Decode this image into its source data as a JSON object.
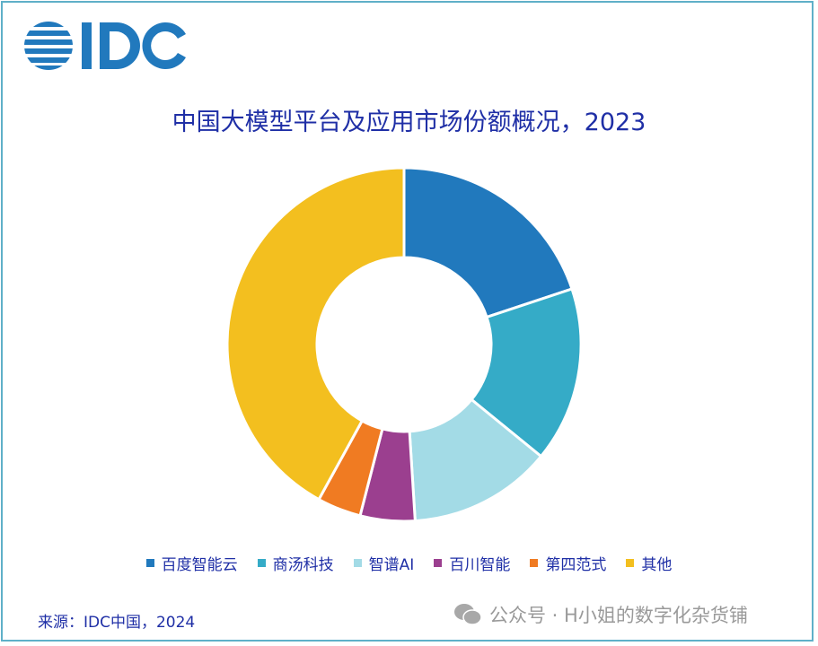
{
  "logo_text": "IDC",
  "chart_data": {
    "type": "pie",
    "variant": "donut",
    "title": "中国大模型平台及应用市场份额概况，2023",
    "categories": [
      "百度智能云",
      "商汤科技",
      "智谱AI",
      "百川智能",
      "第四范式",
      "其他"
    ],
    "values": [
      19.9,
      16.0,
      13.1,
      5.0,
      4.0,
      42.0
    ],
    "unit": "%",
    "colors": [
      "#2179bd",
      "#35abc7",
      "#a3dbe6",
      "#9b3f8f",
      "#f07b22",
      "#f3bf1f"
    ],
    "legend": "bottom"
  },
  "source": "来源：IDC中国，2024",
  "watermark": "公众号 · H小姐的数字化杂货铺"
}
